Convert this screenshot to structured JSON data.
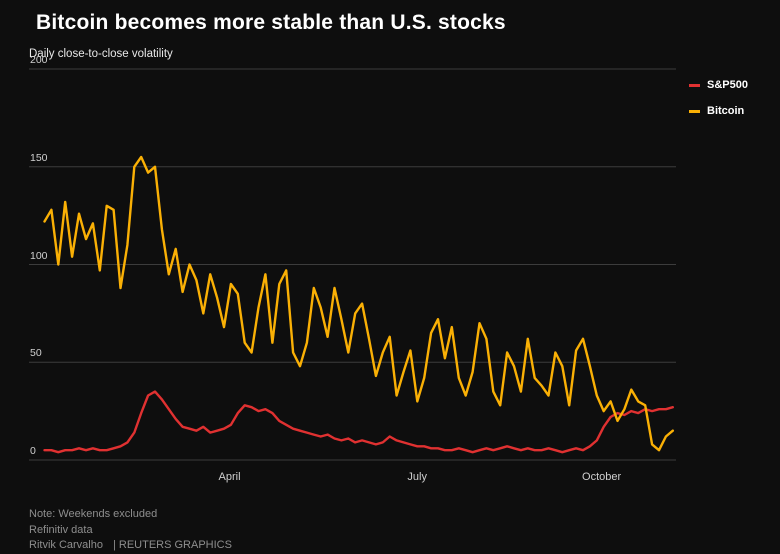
{
  "title": "Bitcoin becomes more stable than U.S. stocks",
  "subtitle": "Daily close-to-close volatility",
  "footer": {
    "note": "Note: Weekends excluded",
    "source": "Refinitiv data",
    "byline": "Ritvik Carvalho",
    "credit": "| REUTERS GRAPHICS"
  },
  "colors": {
    "background": "#0e0e0e",
    "grid": "#3c3c3c",
    "axis_text": "#cfcfcf",
    "muted_text": "#8e8e8e",
    "sp500_red": "#e03131",
    "bitcoin_yellow": "#fab005"
  },
  "chart_data": {
    "type": "line",
    "title": "Bitcoin becomes more stable than U.S. stocks",
    "subtitle": "Daily close-to-close volatility",
    "ylabel": "Daily close-to-close volatility",
    "ylim": [
      0,
      200
    ],
    "yticks": [
      0,
      50,
      100,
      150,
      200
    ],
    "xticks": [
      {
        "label": "April",
        "pos": 31
      },
      {
        "label": "July",
        "pos": 60
      },
      {
        "label": "October",
        "pos": 88.5
      }
    ],
    "grid": "horizontal",
    "legend_position": "top-right",
    "series": [
      {
        "name": "S&P500",
        "color": "#e03131",
        "values": [
          5,
          5,
          4,
          5,
          5,
          6,
          5,
          6,
          5,
          5,
          6,
          7,
          9,
          14,
          24,
          33,
          35,
          31,
          26,
          21,
          17,
          16,
          15,
          17,
          14,
          15,
          16,
          18,
          24,
          28,
          27,
          25,
          26,
          24,
          20,
          18,
          16,
          15,
          14,
          13,
          12,
          13,
          11,
          10,
          11,
          9,
          10,
          9,
          8,
          9,
          12,
          10,
          9,
          8,
          7,
          7,
          6,
          6,
          5,
          5,
          6,
          5,
          4,
          5,
          6,
          5,
          6,
          7,
          6,
          5,
          6,
          5,
          5,
          6,
          5,
          4,
          5,
          6,
          5,
          7,
          10,
          17,
          22,
          24,
          23,
          25,
          24,
          26,
          25,
          26,
          26,
          27
        ]
      },
      {
        "name": "Bitcoin",
        "color": "#fab005",
        "values": [
          122,
          128,
          100,
          132,
          104,
          126,
          113,
          121,
          97,
          130,
          128,
          88,
          110,
          150,
          155,
          147,
          150,
          118,
          95,
          108,
          86,
          100,
          92,
          75,
          95,
          83,
          68,
          90,
          85,
          60,
          55,
          78,
          95,
          60,
          90,
          97,
          55,
          48,
          60,
          88,
          78,
          63,
          88,
          72,
          55,
          75,
          80,
          62,
          43,
          55,
          63,
          33,
          45,
          56,
          30,
          42,
          65,
          72,
          52,
          68,
          42,
          33,
          45,
          70,
          62,
          35,
          28,
          55,
          48,
          35,
          62,
          42,
          38,
          33,
          55,
          48,
          28,
          56,
          62,
          48,
          33,
          25,
          30,
          20,
          26,
          36,
          30,
          28,
          8,
          5,
          12,
          15
        ]
      }
    ]
  }
}
